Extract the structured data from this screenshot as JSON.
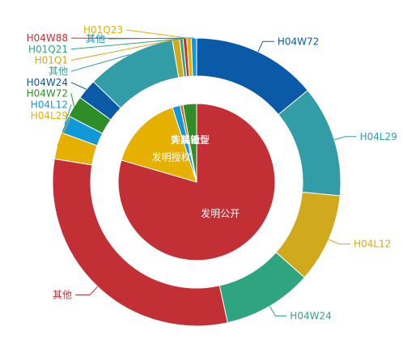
{
  "chart_data": {
    "type": "pie",
    "subtype": "nested-donut",
    "inner": {
      "slices": [
        {
          "name": "发明公开",
          "value": 79.5,
          "color": "#c23035"
        },
        {
          "name": "发明授权",
          "value": 15.5,
          "color": "#e5b000"
        },
        {
          "name": "实用新型",
          "value": 1.6,
          "color": "#1098d9"
        },
        {
          "name": "外观设计",
          "value": 0.6,
          "color": "#cc6b1c"
        },
        {
          "name": "其他",
          "value": 2.8,
          "color": "#2f8d27"
        }
      ]
    },
    "outer": {
      "slices": [
        {
          "name": "H04W72",
          "value": 14.0,
          "color": "#0a5aa8"
        },
        {
          "name": "H04L29",
          "value": 12.5,
          "color": "#339da7"
        },
        {
          "name": "H04L12",
          "value": 10.0,
          "color": "#d1a91c"
        },
        {
          "name": "H04W24",
          "value": 10.0,
          "color": "#2ea57f"
        },
        {
          "name": "其他",
          "value": 31.0,
          "color": "#c23035"
        },
        {
          "name": "H04L29",
          "value": 3.0,
          "color": "#e5b000"
        },
        {
          "name": "H04L12",
          "value": 2.0,
          "color": "#1098d9"
        },
        {
          "name": "H04W72",
          "value": 2.4,
          "color": "#2f8d27"
        },
        {
          "name": "H04W24",
          "value": 2.3,
          "color": "#0a5aa8"
        },
        {
          "name": "其他",
          "value": 10.0,
          "color": "#339da7"
        },
        {
          "name": "H01Q1",
          "value": 0.8,
          "color": "#d1a91c"
        },
        {
          "name": "H01Q21",
          "value": 0.4,
          "color": "#2ea57f"
        },
        {
          "name": "H04W88",
          "value": 0.4,
          "color": "#c23035"
        },
        {
          "name": "H01Q23",
          "value": 0.5,
          "color": "#e5b000"
        },
        {
          "name": "其他",
          "value": 0.6,
          "color": "#1098d9"
        }
      ]
    }
  }
}
